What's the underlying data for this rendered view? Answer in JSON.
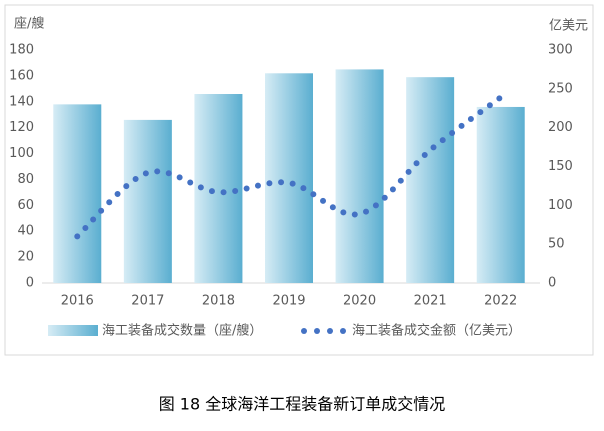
{
  "chart_data": {
    "type": "bar_line",
    "y_label": "座/艘",
    "y2_label": "亿美元",
    "categories": [
      "2016",
      "2017",
      "2018",
      "2019",
      "2020",
      "2021",
      "2022"
    ],
    "series": [
      {
        "name": "海工装备成交数量（座/艘）",
        "color": "#5aaed0",
        "values": [
          138,
          126,
          146,
          162,
          165,
          159,
          136
        ]
      },
      {
        "name": "海工装备成交金额（亿美元）",
        "color": "#4472c4",
        "axis": "y2",
        "values": [
          60,
          142,
          117,
          129,
          89,
          171,
          239
        ]
      }
    ],
    "ylim": [
      0,
      180
    ],
    "yticks": [
      0,
      20,
      40,
      60,
      80,
      100,
      120,
      140,
      160,
      180
    ],
    "y2lim": [
      0,
      300
    ],
    "y2ticks": [
      0,
      50,
      100,
      150,
      200,
      250,
      300
    ],
    "caption": "图 18 全球海洋工程装备新订单成交情况"
  }
}
